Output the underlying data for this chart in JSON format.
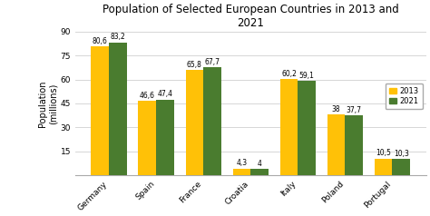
{
  "title": "Population of Selected European Countries in 2013 and\n2021",
  "ylabel": "Population\n(millions)",
  "categories": [
    "Germany",
    "Spain",
    "France",
    "Croatia",
    "Italy",
    "Poland",
    "Portugal"
  ],
  "values_2013": [
    80.6,
    46.6,
    65.8,
    4.3,
    60.2,
    38,
    10.5
  ],
  "values_2021": [
    83.2,
    47.4,
    67.7,
    4.0,
    59.1,
    37.7,
    10.3
  ],
  "labels_2013": [
    "80,6",
    "46,6",
    "65,8",
    "4,3",
    "60,2",
    "38",
    "10,5"
  ],
  "labels_2021": [
    "83,2",
    "47,4",
    "67,7",
    "4",
    "59,1",
    "37,7",
    "10,3"
  ],
  "color_2013": "#FFC107",
  "color_2021": "#4A7C2F",
  "ylim": [
    0,
    90
  ],
  "yticks": [
    15,
    30,
    45,
    60,
    75,
    90
  ],
  "ytick_labels": [
    "15",
    "30",
    "45",
    "60",
    "75",
    "90"
  ],
  "legend_2013": "2013",
  "legend_2021": "2021",
  "background_color": "#ffffff",
  "bar_width": 0.38,
  "title_fontsize": 8.5,
  "label_fontsize": 5.5,
  "tick_fontsize": 6.5,
  "ylabel_fontsize": 7,
  "grid_color": "#d0d0d0"
}
